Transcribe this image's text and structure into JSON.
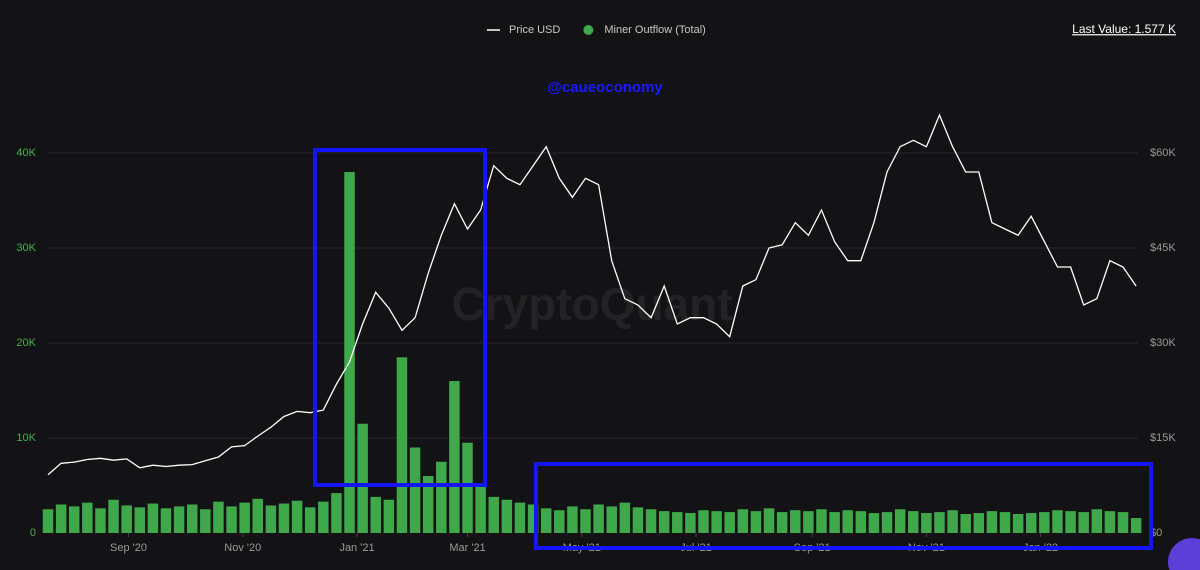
{
  "chart_data": {
    "type": "bar",
    "title": "@caueoconomy",
    "watermark": "CryptoQuant",
    "last_value": "Last Value: 1.577 K",
    "x": [
      0,
      7,
      14,
      21,
      28,
      35,
      42,
      49,
      56,
      63,
      70,
      77,
      84,
      91,
      98,
      105,
      112,
      119,
      126,
      133,
      140,
      147,
      154,
      161,
      168,
      175,
      182,
      189,
      196,
      203,
      210,
      217,
      224,
      231,
      238,
      245,
      252,
      259,
      266,
      273,
      280,
      287,
      294,
      301,
      308,
      315,
      322,
      329,
      336,
      343,
      350,
      357,
      364,
      371,
      378,
      385,
      392,
      399,
      406,
      413,
      420,
      427,
      434,
      441,
      448,
      455,
      462,
      469,
      476,
      483,
      490,
      497,
      504,
      511,
      518,
      525,
      532,
      539,
      546,
      553,
      560,
      567,
      574,
      581
    ],
    "xlim": [
      0,
      582
    ],
    "xticks": [
      {
        "value": 43,
        "label": "Sep '20"
      },
      {
        "value": 104,
        "label": "Nov '20"
      },
      {
        "value": 165,
        "label": "Jan '21"
      },
      {
        "value": 224,
        "label": "Mar '21"
      },
      {
        "value": 285,
        "label": "May '21"
      },
      {
        "value": 346,
        "label": "Jul '21"
      },
      {
        "value": 408,
        "label": "Sep '21"
      },
      {
        "value": 469,
        "label": "Nov '21"
      },
      {
        "value": 530,
        "label": "Jan '22"
      }
    ],
    "ylim": [
      0,
      50000
    ],
    "yticks": [
      0,
      {
        "value": 10000,
        "label": "10K"
      },
      {
        "value": 20000,
        "label": "20K"
      },
      {
        "value": 30000,
        "label": "30K"
      },
      {
        "value": 40000,
        "label": "40K"
      }
    ],
    "y2lim": [
      0,
      75000
    ],
    "y2ticks": [
      {
        "value": 0,
        "label": "$0"
      },
      {
        "value": 15000,
        "label": "$15K"
      },
      {
        "value": 30000,
        "label": "$30K"
      },
      {
        "value": 45000,
        "label": "$45K"
      },
      {
        "value": 60000,
        "label": "$60K"
      }
    ],
    "grid": true,
    "series": [
      {
        "name": "Price USD",
        "type": "line",
        "axis": "y2",
        "color": "#ffffff",
        "values": [
          9200,
          11000,
          11200,
          11600,
          11800,
          11500,
          11700,
          10300,
          10700,
          10500,
          10700,
          10800,
          11400,
          12000,
          13600,
          13800,
          15300,
          16700,
          18400,
          19200,
          19000,
          19400,
          23500,
          27000,
          33000,
          38000,
          35500,
          32000,
          34000,
          41000,
          47000,
          52000,
          48000,
          51000,
          58000,
          56000,
          55000,
          58000,
          61000,
          56000,
          53000,
          56000,
          55000,
          43000,
          37000,
          36000,
          34000,
          39000,
          33000,
          34000,
          34000,
          33000,
          31000,
          39000,
          40000,
          45000,
          45500,
          49000,
          47000,
          51000,
          46000,
          43000,
          43000,
          49000,
          57000,
          61000,
          62000,
          61000,
          66000,
          61000,
          57000,
          57000,
          49000,
          48000,
          47000,
          50000,
          46000,
          42000,
          42000,
          36000,
          37000,
          43000,
          42000,
          39000
        ]
      },
      {
        "name": "Miner Outflow (Total)",
        "type": "bar",
        "color": "#3ea84a",
        "values": [
          2500,
          3000,
          2800,
          3200,
          2600,
          3500,
          2900,
          2700,
          3100,
          2600,
          2800,
          3000,
          2500,
          3300,
          2800,
          3200,
          3600,
          2900,
          3100,
          3400,
          2700,
          3300,
          4200,
          38000,
          11500,
          3800,
          3500,
          18500,
          9000,
          6000,
          7500,
          16000,
          9500,
          5000,
          3800,
          3500,
          3200,
          3000,
          2600,
          2400,
          2800,
          2500,
          3000,
          2800,
          3200,
          2700,
          2500,
          2300,
          2200,
          2100,
          2400,
          2300,
          2200,
          2500,
          2300,
          2600,
          2200,
          2400,
          2300,
          2500,
          2200,
          2400,
          2300,
          2100,
          2200,
          2500,
          2300,
          2100,
          2200,
          2400,
          2000,
          2100,
          2300,
          2200,
          2000,
          2100,
          2200,
          2400,
          2300,
          2200,
          2500,
          2300,
          2200,
          1577
        ]
      }
    ]
  }
}
